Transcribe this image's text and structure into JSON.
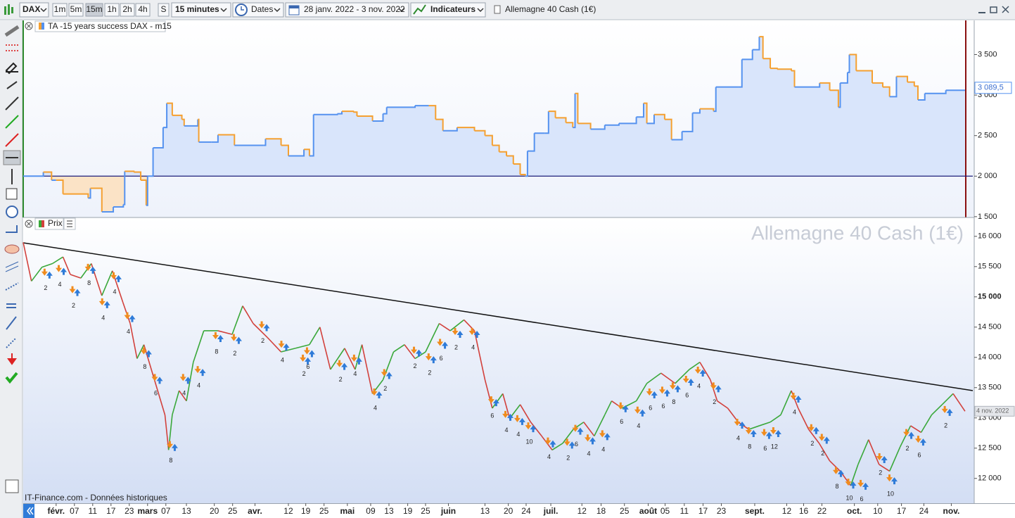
{
  "toolbar": {
    "symbol": "DAX",
    "timeframes": [
      "1m",
      "5m",
      "15m",
      "1h",
      "2h",
      "4h",
      "S"
    ],
    "interval": "15 minutes",
    "dates": "Dates",
    "range": "28 janv. 2022 - 3 nov. 2022",
    "indicators": "Indicateurs",
    "instrument": "Allemagne 40 Cash (1€)"
  },
  "chart_data": [
    {
      "type": "step",
      "title": "TA -15 years success DAX - m15",
      "x": [
        -7.2,
        -2.8,
        -1,
        0,
        1.5,
        7,
        7.5,
        10,
        12.5,
        14.7,
        15,
        17,
        18.5,
        19.7,
        20,
        21.2,
        23.4,
        24.2,
        25.4,
        27.5,
        28,
        31,
        31.2,
        34,
        35.4,
        39,
        45.4,
        45.8,
        49.2,
        50.8,
        53.8,
        54.2,
        55.4,
        56.3,
        61.5,
        62.5,
        65,
        65.8,
        69.2,
        71.5,
        72.3,
        78.5,
        81.5,
        83,
        84.6,
        87.7,
        91.5,
        93.8,
        95.4,
        96.9,
        98.5,
        100,
        101.5,
        102.6,
        103.1,
        104.6,
        106.9,
        107.7,
        109.2,
        111.5,
        113,
        113.5,
        114.1,
        116.9,
        120,
        123.1,
        126.9,
        128.5,
        129.2,
        130.8,
        133.1,
        134.6,
        136.9,
        139.2,
        140.8,
        143.8,
        144.3,
        149.2,
        150,
        152.3,
        153.8,
        154.6,
        156.2,
        157.7,
        160.8,
        161.5,
        167,
        169.2,
        171.1,
        171.5,
        173.1,
        173.5,
        175,
        178.5,
        180.8,
        182.3,
        183.8,
        186.2,
        187.7,
        188.5,
        190,
        194.6,
        198.8
      ],
      "values": [
        2000,
        2050,
        1950,
        1950,
        1780,
        1730,
        1850,
        1560,
        1620,
        1650,
        2060,
        2050,
        1950,
        1640,
        2000,
        2350,
        2600,
        2900,
        2750,
        2700,
        2620,
        2700,
        2420,
        2420,
        2510,
        2380,
        2380,
        2460,
        2380,
        2250,
        2250,
        2330,
        2250,
        2760,
        2770,
        2800,
        2790,
        2740,
        2680,
        2770,
        2850,
        2870,
        2870,
        2700,
        2560,
        2600,
        2560,
        2500,
        2380,
        2300,
        2250,
        2150,
        2020,
        2000,
        2310,
        2530,
        2530,
        2800,
        2720,
        2660,
        2600,
        3020,
        2650,
        2580,
        2630,
        2650,
        2730,
        2900,
        2650,
        2760,
        2700,
        2450,
        2550,
        2780,
        2830,
        2800,
        3100,
        3100,
        3440,
        3560,
        3720,
        3450,
        3330,
        3320,
        3300,
        3100,
        3150,
        3060,
        2850,
        3150,
        3280,
        3500,
        3300,
        3150,
        3100,
        2980,
        3230,
        3160,
        3110,
        2940,
        3020,
        3060,
        3060
      ],
      "color": "#5592ef",
      "down_color": "#f5a030",
      "fill": "#d9e5fb",
      "down_fill": "#fbe3c6",
      "reference_line": 2000,
      "reference_color": "#1c1c7a",
      "xlim": [
        -7.2,
        200.5
      ],
      "ylim": [
        1490,
        3930
      ],
      "yticks": [
        {
          "value": 1500,
          "label": "1 500"
        },
        {
          "value": 2000,
          "label": "2 000"
        },
        {
          "value": 2500,
          "label": "2 500"
        },
        {
          "value": 3000,
          "label": "3 000"
        },
        {
          "value": 3500,
          "label": "3 500"
        }
      ],
      "last_value": {
        "value": 3089.5,
        "label": "3 089,5"
      }
    },
    {
      "type": "line",
      "title": "Prix",
      "watermark": "Allemagne 40 Cash (1€)",
      "x": [
        -7.2,
        -5.4,
        -3.1,
        -0.8,
        1.5,
        3.1,
        5.4,
        7.7,
        10,
        12.3,
        14.6,
        16.2,
        17.7,
        19.2,
        21.5,
        23.8,
        24.6,
        25.4,
        26.9,
        28.5,
        30,
        32.3,
        35.4,
        38.5,
        40.8,
        43.1,
        46.2,
        49.2,
        52.3,
        55.4,
        57.7,
        60,
        63.1,
        65.4,
        66.9,
        69.2,
        71.5,
        73.8,
        76.2,
        78.5,
        80.8,
        83.8,
        86.2,
        89.2,
        91.5,
        93.8,
        95.4,
        97.7,
        99.2,
        101.5,
        103.8,
        106.2,
        108.5,
        110.8,
        113.1,
        115.4,
        117.7,
        120,
        121.5,
        123.8,
        126.9,
        129.2,
        132.3,
        135.4,
        138.5,
        140.8,
        143.1,
        144.6,
        146.9,
        149.2,
        151.5,
        153.8,
        156.2,
        158.5,
        160.8,
        162.3,
        164.6,
        166.9,
        169.2,
        171.5,
        173.8,
        175.4,
        177.7,
        180,
        182.3,
        184.6,
        186.9,
        189.2,
        191.5,
        193.8,
        196.2,
        198.8
      ],
      "values": [
        15900,
        15260,
        15490,
        15550,
        15660,
        15370,
        15310,
        15550,
        15020,
        15430,
        14910,
        14560,
        13980,
        14210,
        13630,
        13050,
        12470,
        13050,
        13450,
        13280,
        13920,
        14440,
        14440,
        14380,
        14850,
        14560,
        14330,
        14090,
        14150,
        14210,
        14500,
        13800,
        14150,
        13800,
        14210,
        13400,
        13630,
        14090,
        14210,
        13980,
        14090,
        14560,
        14440,
        14620,
        14440,
        13630,
        13160,
        13400,
        12990,
        13220,
        12930,
        12700,
        12470,
        12580,
        12810,
        12930,
        12700,
        13050,
        13280,
        13160,
        13280,
        13570,
        13740,
        13570,
        13800,
        13920,
        13630,
        13280,
        13160,
        12930,
        12810,
        12870,
        12930,
        13050,
        13450,
        13160,
        12810,
        12580,
        12290,
        12120,
        11880,
        12230,
        12640,
        12230,
        12120,
        12520,
        12870,
        12760,
        13050,
        13220,
        13400,
        13110
      ],
      "color": "#3aa83a",
      "down_color": "#d2413c",
      "xlim": [
        -7.2,
        200.5
      ],
      "ylim": [
        11590,
        16300
      ],
      "yticks": [
        {
          "value": 12000,
          "label": "12 000"
        },
        {
          "value": 12500,
          "label": "12 500"
        },
        {
          "value": 13000,
          "label": "13 000"
        },
        {
          "value": 13500,
          "label": "13 500"
        },
        {
          "value": 14000,
          "label": "14 000"
        },
        {
          "value": 14500,
          "label": "14 500"
        },
        {
          "value": 15000,
          "label": "15 000"
        },
        {
          "value": 15500,
          "label": "15 500"
        },
        {
          "value": 16000,
          "label": "16 000"
        }
      ],
      "xticks": [
        {
          "value": 0,
          "label": "févr."
        },
        {
          "value": 4,
          "label": "07"
        },
        {
          "value": 8,
          "label": "11"
        },
        {
          "value": 12,
          "label": "17"
        },
        {
          "value": 16,
          "label": "23"
        },
        {
          "value": 20,
          "label": "mars"
        },
        {
          "value": 24,
          "label": "07"
        },
        {
          "value": 28.5,
          "label": "13"
        },
        {
          "value": 34.6,
          "label": "20"
        },
        {
          "value": 38.6,
          "label": "25"
        },
        {
          "value": 43.5,
          "label": "avr."
        },
        {
          "value": 50.8,
          "label": "12"
        },
        {
          "value": 54.6,
          "label": "19"
        },
        {
          "value": 58.6,
          "label": "25"
        },
        {
          "value": 63.7,
          "label": "mai"
        },
        {
          "value": 68.8,
          "label": "09"
        },
        {
          "value": 72.8,
          "label": "13"
        },
        {
          "value": 76.9,
          "label": "19"
        },
        {
          "value": 80.8,
          "label": "25"
        },
        {
          "value": 85.8,
          "label": "juin"
        },
        {
          "value": 93.8,
          "label": "13"
        },
        {
          "value": 98.9,
          "label": "20"
        },
        {
          "value": 102.8,
          "label": "24"
        },
        {
          "value": 108.2,
          "label": "juil."
        },
        {
          "value": 115,
          "label": "12"
        },
        {
          "value": 119.2,
          "label": "18"
        },
        {
          "value": 124.3,
          "label": "25"
        },
        {
          "value": 129.5,
          "label": "août"
        },
        {
          "value": 133.2,
          "label": "05"
        },
        {
          "value": 137.4,
          "label": "11"
        },
        {
          "value": 141.5,
          "label": "17"
        },
        {
          "value": 145.5,
          "label": "23"
        },
        {
          "value": 152.8,
          "label": "sept."
        },
        {
          "value": 159.8,
          "label": "12"
        },
        {
          "value": 163.5,
          "label": "16"
        },
        {
          "value": 167.5,
          "label": "22"
        },
        {
          "value": 174.6,
          "label": "oct."
        },
        {
          "value": 179.7,
          "label": "10"
        },
        {
          "value": 184.9,
          "label": "17"
        },
        {
          "value": 189.8,
          "label": "24"
        },
        {
          "value": 195.8,
          "label": "nov."
        }
      ],
      "signals": {
        "x": [
          -2.3,
          0.8,
          3.8,
          7.2,
          10.3,
          12.8,
          15.8,
          19.4,
          21.8,
          25.1,
          28,
          31.2,
          35.1,
          39.1,
          45.2,
          49.5,
          54.2,
          55.1,
          62.2,
          65.4,
          69.8,
          72,
          78.5,
          81.7,
          84.2,
          87.5,
          91.2,
          95.4,
          98.5,
          101.1,
          103.5,
          107.8,
          112,
          113.8,
          116.5,
          119.7,
          123.7,
          127.4,
          130,
          132.8,
          135.1,
          138,
          140.6,
          144,
          149.2,
          151.7,
          155.1,
          157.1,
          161.5,
          165.4,
          167.7,
          170.8,
          173.5,
          176.2,
          180.3,
          182.5,
          186.2,
          188.8,
          194.6
        ],
        "y": [
          15140,
          15200,
          14850,
          15220,
          14650,
          15080,
          14420,
          13840,
          13400,
          12290,
          13400,
          13530,
          14090,
          14060,
          14270,
          13950,
          13720,
          13840,
          13630,
          13720,
          13160,
          13480,
          13850,
          13740,
          13980,
          14160,
          14160,
          13030,
          12790,
          12720,
          12600,
          12350,
          12330,
          12560,
          12400,
          12470,
          12930,
          12860,
          13160,
          13190,
          13260,
          13370,
          13520,
          13260,
          12660,
          12520,
          12490,
          12520,
          13090,
          12570,
          12410,
          11860,
          11670,
          11650,
          12090,
          11740,
          12490,
          12380,
          12870
        ],
        "labels": [
          "2",
          "4",
          "2",
          "8",
          "4",
          "4",
          "4",
          "8",
          "6",
          "8",
          "4",
          "4",
          "8",
          "2",
          "2",
          "4",
          "2",
          "6",
          "2",
          "4",
          "4",
          "2",
          "2",
          "2",
          "6",
          "2",
          "4",
          "6",
          "4",
          "4",
          "10",
          "4",
          "2",
          "6",
          "4",
          "4",
          "6",
          "4",
          "6",
          "6",
          "8",
          "6",
          "4",
          "2",
          "4",
          "8",
          "6",
          "12",
          "4",
          "2",
          "2",
          "8",
          "10",
          "6",
          "2",
          "10",
          "2",
          "6",
          "2"
        ]
      },
      "last_label": "4 nov. 2022"
    }
  ],
  "footer": "IT-Finance.com - Données historiques"
}
